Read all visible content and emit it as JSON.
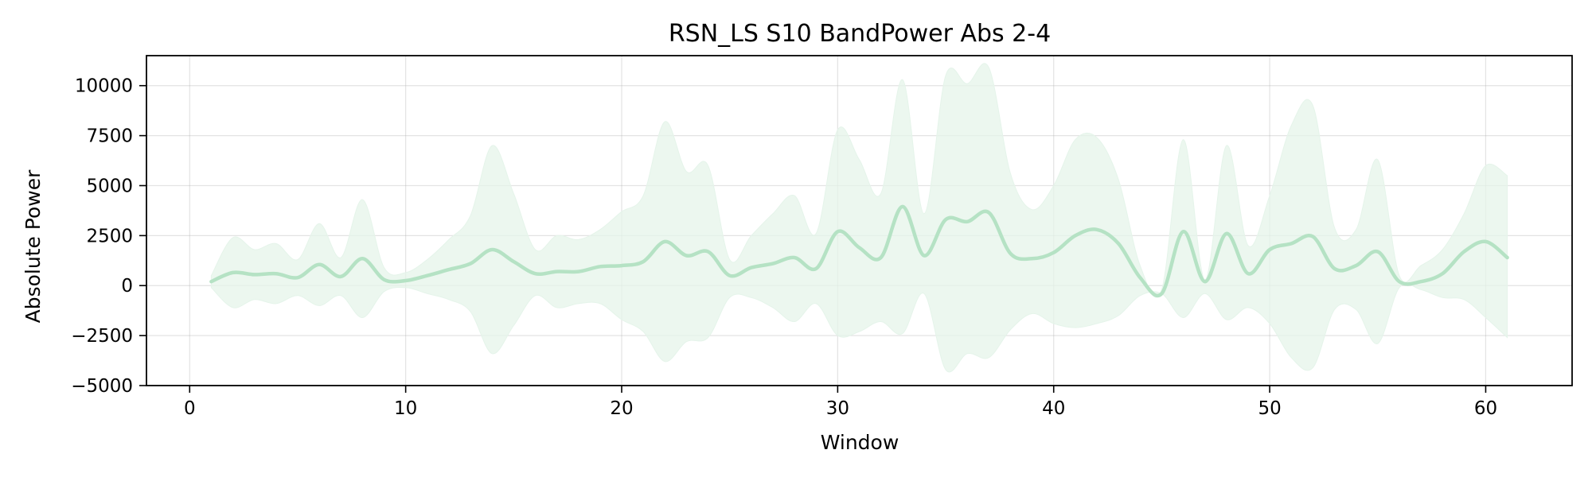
{
  "chart_data": {
    "type": "line",
    "title": "RSN_LS S10 BandPower Abs 2-4",
    "xlabel": "Window",
    "ylabel": "Absolute Power",
    "xlim": [
      -2,
      64
    ],
    "ylim": [
      -5000,
      11500
    ],
    "xticks": [
      0,
      10,
      20,
      30,
      40,
      50,
      60
    ],
    "yticks": [
      -5000,
      -2500,
      0,
      2500,
      5000,
      7500,
      10000
    ],
    "xtick_labels": [
      "0",
      "10",
      "20",
      "30",
      "40",
      "50",
      "60"
    ],
    "ytick_labels": [
      "−5000",
      "−2500",
      "0",
      "2500",
      "5000",
      "7500",
      "10000"
    ],
    "grid": true,
    "colors": {
      "line": "#b5e2c4",
      "band": "#e5f4ea"
    },
    "series": [
      {
        "x": [
          1,
          2,
          3,
          4,
          5,
          6,
          7,
          8,
          9,
          10,
          11,
          12,
          13,
          14,
          15,
          16,
          17,
          18,
          19,
          20,
          21,
          22,
          23,
          24,
          25,
          26,
          27,
          28,
          29,
          30,
          31,
          32,
          33,
          34,
          35,
          36,
          37,
          38,
          39,
          40,
          41,
          42,
          43,
          44,
          45,
          46,
          47,
          48,
          49,
          50,
          51,
          52,
          53,
          54,
          55,
          56,
          57,
          58,
          59,
          60,
          61
        ],
        "mean": [
          200,
          650,
          550,
          600,
          400,
          1050,
          450,
          1350,
          300,
          250,
          500,
          800,
          1100,
          1800,
          1200,
          600,
          700,
          700,
          950,
          1000,
          1200,
          2200,
          1500,
          1700,
          500,
          900,
          1100,
          1400,
          850,
          2700,
          1900,
          1400,
          3950,
          1500,
          3300,
          3200,
          3650,
          1600,
          1350,
          1650,
          2500,
          2800,
          2100,
          400,
          -400,
          2700,
          200,
          2600,
          600,
          1800,
          2100,
          2450,
          850,
          1000,
          1700,
          200,
          200,
          600,
          1700,
          2200,
          1400
        ],
        "upper": [
          500,
          2400,
          1800,
          2100,
          1300,
          3100,
          1400,
          4300,
          900,
          650,
          1300,
          2300,
          3500,
          7000,
          4600,
          1800,
          2500,
          2300,
          2800,
          3700,
          4500,
          8200,
          5700,
          6000,
          1300,
          2500,
          3600,
          4500,
          2600,
          7800,
          6300,
          4600,
          10300,
          3600,
          10500,
          10100,
          10900,
          5600,
          3800,
          5000,
          7300,
          7400,
          5300,
          1000,
          -200,
          7300,
          300,
          7000,
          2000,
          4500,
          8000,
          9000,
          2900,
          2800,
          6300,
          500,
          1000,
          1800,
          3600,
          6000,
          5500
        ],
        "lower": [
          -100,
          -1100,
          -700,
          -900,
          -500,
          -1000,
          -500,
          -1600,
          -300,
          -100,
          -400,
          -700,
          -1300,
          -3400,
          -2000,
          -500,
          -1100,
          -900,
          -900,
          -1700,
          -2300,
          -3800,
          -2800,
          -2600,
          -600,
          -600,
          -1100,
          -1800,
          -900,
          -2500,
          -2300,
          -1800,
          -2400,
          -400,
          -4200,
          -3400,
          -3600,
          -2200,
          -1400,
          -1900,
          -2100,
          -1900,
          -1500,
          -500,
          -400,
          -1600,
          -400,
          -1700,
          -1100,
          -1900,
          -3600,
          -4100,
          -1200,
          -1200,
          -2900,
          -100,
          -200,
          -600,
          -700,
          -1600,
          -2600
        ]
      }
    ]
  }
}
